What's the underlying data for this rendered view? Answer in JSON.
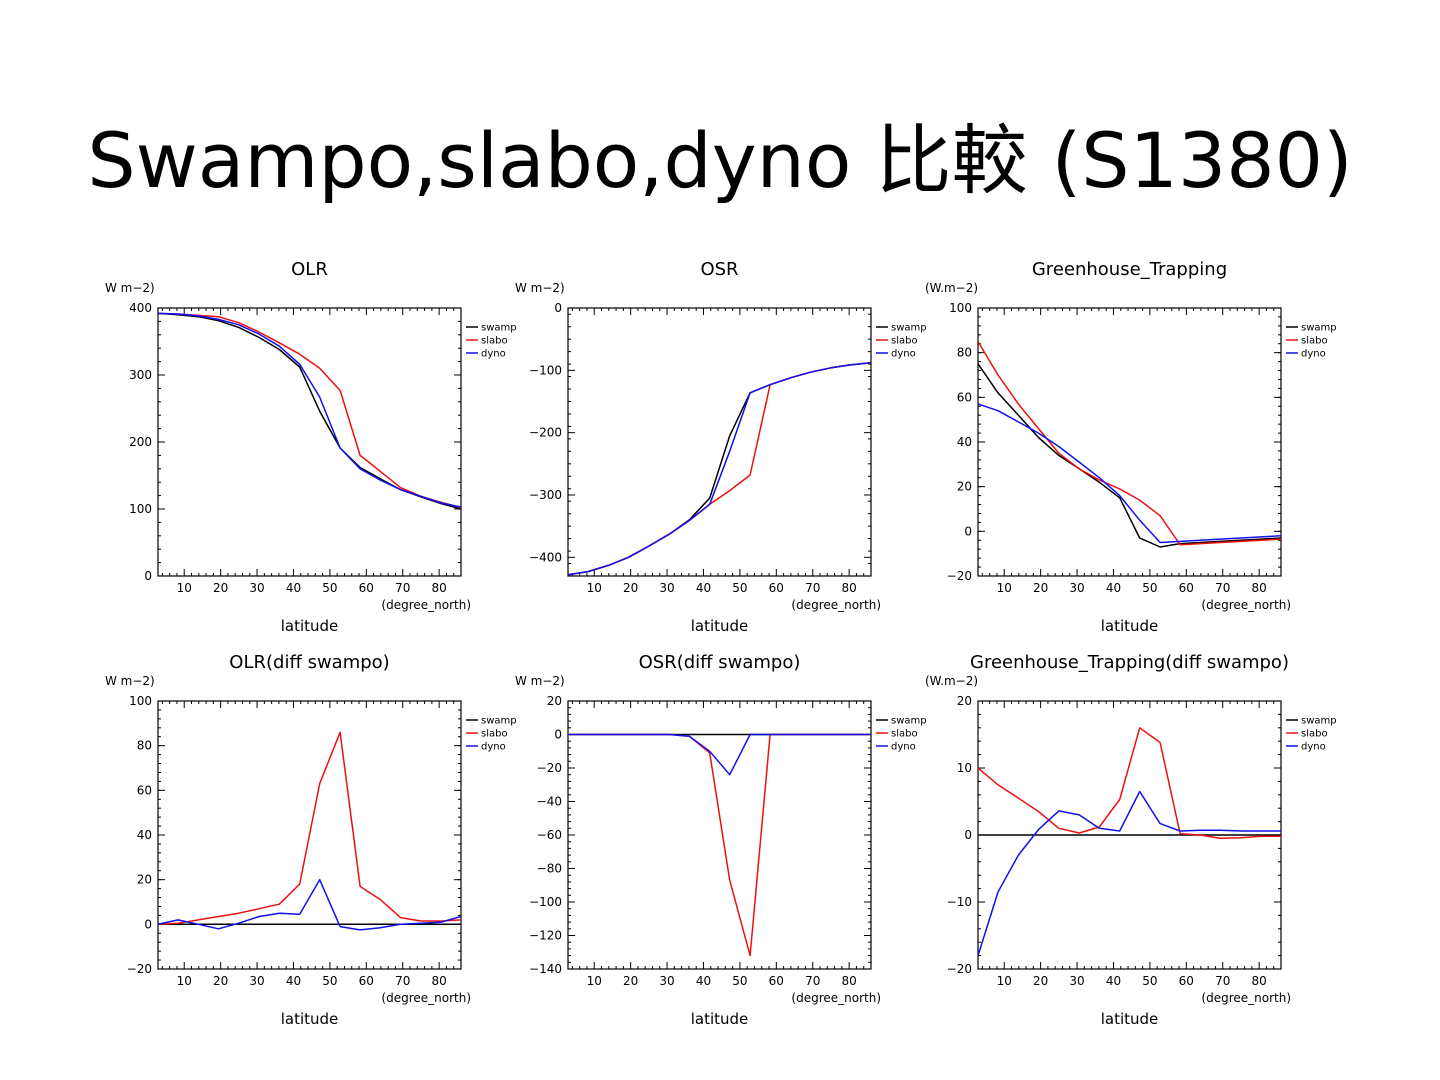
{
  "slide": {
    "title": "Swampo,slabo,dyno 比較 (S1380)"
  },
  "colors": {
    "swamp": "#000000",
    "slabo": "#ee1111",
    "dyno": "#1111ee"
  },
  "chart_data": [
    {
      "type": "line",
      "title": "OLR",
      "ylabel": "W m−2)",
      "xlabel": "latitude",
      "xunit": "(degree_north)",
      "xlim": [
        2.8,
        86
      ],
      "ylim": [
        0,
        400
      ],
      "xticks": [
        10,
        20,
        30,
        40,
        50,
        60,
        70,
        80
      ],
      "yticks": [
        0,
        100,
        200,
        300,
        400
      ],
      "legend": "top-right",
      "series": [
        {
          "name": "swamp",
          "color": "#000000",
          "x": [
            2.8,
            8.3,
            13.9,
            19.4,
            25,
            30.6,
            36.1,
            41.7,
            47.2,
            52.8,
            58.3,
            63.9,
            69.4,
            75,
            80.6,
            86
          ],
          "y": [
            392,
            390,
            387,
            381,
            371,
            356,
            338,
            312,
            246,
            191,
            162,
            145,
            129,
            118,
            108,
            100
          ]
        },
        {
          "name": "slabo",
          "color": "#ee1111",
          "x": [
            2.8,
            8.3,
            13.9,
            19.4,
            25,
            30.6,
            36.1,
            41.7,
            47.2,
            52.8,
            58.3,
            63.9,
            69.4,
            75,
            80.6,
            86
          ],
          "y": [
            392,
            391,
            389,
            387,
            378,
            364,
            348,
            331,
            310,
            277,
            180,
            156,
            132,
            119,
            110,
            102
          ]
        },
        {
          "name": "dyno",
          "color": "#1111ee",
          "x": [
            2.8,
            8.3,
            13.9,
            19.4,
            25,
            30.6,
            36.1,
            41.7,
            47.2,
            52.8,
            58.3,
            63.9,
            69.4,
            75,
            80.6,
            86
          ],
          "y": [
            392,
            391,
            388,
            383,
            375,
            361,
            343,
            316,
            267,
            191,
            160,
            143,
            129,
            119,
            109,
            103
          ]
        }
      ]
    },
    {
      "type": "line",
      "title": "OSR",
      "ylabel": "W m−2)",
      "xlabel": "latitude",
      "xunit": "(degree_north)",
      "xlim": [
        2.8,
        86
      ],
      "ylim": [
        -430,
        0
      ],
      "xticks": [
        10,
        20,
        30,
        40,
        50,
        60,
        70,
        80
      ],
      "yticks": [
        -400,
        -300,
        -200,
        -100,
        0
      ],
      "legend": "top-right",
      "series": [
        {
          "name": "swamp",
          "color": "#000000",
          "x": [
            2.8,
            8.3,
            13.9,
            19.4,
            25,
            30.6,
            36.1,
            41.7,
            47.2,
            52.8,
            58.3,
            63.9,
            69.4,
            75,
            80.6,
            86
          ],
          "y": [
            -428,
            -423,
            -413,
            -400,
            -382,
            -363,
            -340,
            -305,
            -205,
            -136,
            -123,
            -112,
            -103,
            -96,
            -91,
            -88
          ]
        },
        {
          "name": "slabo",
          "color": "#ee1111",
          "x": [
            2.8,
            8.3,
            13.9,
            19.4,
            25,
            30.6,
            36.1,
            41.7,
            47.2,
            52.8,
            58.3,
            63.9,
            69.4,
            75,
            80.6,
            86
          ],
          "y": [
            -428,
            -423,
            -413,
            -400,
            -382,
            -363,
            -341,
            -315,
            -293,
            -268,
            -123,
            -112,
            -103,
            -96,
            -91,
            -88
          ]
        },
        {
          "name": "dyno",
          "color": "#1111ee",
          "x": [
            2.8,
            8.3,
            13.9,
            19.4,
            25,
            30.6,
            36.1,
            41.7,
            47.2,
            52.8,
            58.3,
            63.9,
            69.4,
            75,
            80.6,
            86
          ],
          "y": [
            -428,
            -423,
            -413,
            -400,
            -382,
            -363,
            -341,
            -315,
            -230,
            -136,
            -123,
            -112,
            -103,
            -96,
            -91,
            -88
          ]
        }
      ]
    },
    {
      "type": "line",
      "title": "Greenhouse_Trapping",
      "ylabel": "(W.m−2)",
      "xlabel": "latitude",
      "xunit": "(degree_north)",
      "xlim": [
        2.8,
        86
      ],
      "ylim": [
        -20,
        100
      ],
      "xticks": [
        10,
        20,
        30,
        40,
        50,
        60,
        70,
        80
      ],
      "yticks": [
        -20,
        0,
        20,
        40,
        60,
        80,
        100
      ],
      "legend": "top-right",
      "series": [
        {
          "name": "swamp",
          "color": "#000000",
          "x": [
            2.8,
            8.3,
            13.9,
            19.4,
            25,
            30.6,
            36.1,
            41.7,
            47.2,
            52.8,
            58.3,
            63.9,
            69.4,
            75,
            80.6,
            86
          ],
          "y": [
            75,
            62,
            52,
            42,
            34,
            28,
            22,
            15,
            -3,
            -7,
            -5.5,
            -5,
            -4.5,
            -4,
            -3.5,
            -3
          ]
        },
        {
          "name": "slabo",
          "color": "#ee1111",
          "x": [
            2.8,
            8.3,
            13.9,
            19.4,
            25,
            30.6,
            36.1,
            41.7,
            47.2,
            52.8,
            58.3,
            63.9,
            69.4,
            75,
            80.6,
            86
          ],
          "y": [
            85,
            70,
            57,
            46,
            35,
            28,
            23,
            19,
            14,
            7,
            -6,
            -5.5,
            -5,
            -4.5,
            -4,
            -3.5
          ]
        },
        {
          "name": "dyno",
          "color": "#1111ee",
          "x": [
            2.8,
            8.3,
            13.9,
            19.4,
            25,
            30.6,
            36.1,
            41.7,
            47.2,
            52.8,
            58.3,
            63.9,
            69.4,
            75,
            80.6,
            86
          ],
          "y": [
            57,
            54,
            49,
            44,
            38,
            31,
            24,
            16,
            5,
            -5,
            -4.5,
            -4,
            -3.5,
            -3,
            -2.5,
            -2
          ]
        }
      ]
    },
    {
      "type": "line",
      "title": "OLR(diff swampo)",
      "ylabel": "W m−2)",
      "xlabel": "latitude",
      "xunit": "(degree_north)",
      "xlim": [
        2.8,
        86
      ],
      "ylim": [
        -20,
        100
      ],
      "xticks": [
        10,
        20,
        30,
        40,
        50,
        60,
        70,
        80
      ],
      "yticks": [
        -20,
        0,
        20,
        40,
        60,
        80,
        100
      ],
      "legend": "top-right",
      "series": [
        {
          "name": "swamp",
          "color": "#000000",
          "x": [
            2.8,
            86
          ],
          "y": [
            0,
            0
          ]
        },
        {
          "name": "slabo",
          "color": "#ee1111",
          "x": [
            2.8,
            8.3,
            13.9,
            19.4,
            25,
            30.6,
            36.1,
            41.7,
            47.2,
            52.8,
            58.3,
            63.9,
            69.4,
            75,
            80.6,
            86
          ],
          "y": [
            0,
            0.5,
            2,
            3.5,
            5,
            7,
            9,
            18,
            63,
            86,
            17,
            11,
            3,
            1.5,
            1.5,
            2
          ]
        },
        {
          "name": "dyno",
          "color": "#1111ee",
          "x": [
            2.8,
            8.3,
            13.9,
            19.4,
            25,
            30.6,
            36.1,
            41.7,
            47.2,
            52.8,
            58.3,
            63.9,
            69.4,
            75,
            80.6,
            86
          ],
          "y": [
            0,
            2,
            0,
            -2,
            0.5,
            3.5,
            5,
            4.5,
            20,
            -1,
            -2.5,
            -1.5,
            0,
            0.5,
            1,
            3.5
          ]
        }
      ]
    },
    {
      "type": "line",
      "title": "OSR(diff swampo)",
      "ylabel": "W m−2)",
      "xlabel": "latitude",
      "xunit": "(degree_north)",
      "xlim": [
        2.8,
        86
      ],
      "ylim": [
        -140,
        20
      ],
      "xticks": [
        10,
        20,
        30,
        40,
        50,
        60,
        70,
        80
      ],
      "yticks": [
        -140,
        -120,
        -100,
        -80,
        -60,
        -40,
        -20,
        0,
        20
      ],
      "legend": "top-right",
      "series": [
        {
          "name": "swamp",
          "color": "#000000",
          "x": [
            2.8,
            86
          ],
          "y": [
            0,
            0
          ]
        },
        {
          "name": "slabo",
          "color": "#ee1111",
          "x": [
            2.8,
            8.3,
            13.9,
            19.4,
            25,
            30.6,
            36.1,
            41.7,
            47.2,
            52.8,
            58.3,
            63.9,
            69.4,
            75,
            80.6,
            86
          ],
          "y": [
            0,
            0,
            0,
            0,
            0,
            0,
            -1,
            -11,
            -87,
            -132,
            0,
            0,
            0,
            0,
            0,
            0
          ]
        },
        {
          "name": "dyno",
          "color": "#1111ee",
          "x": [
            2.8,
            8.3,
            13.9,
            19.4,
            25,
            30.6,
            36.1,
            41.7,
            47.2,
            52.8,
            58.3,
            63.9,
            69.4,
            75,
            80.6,
            86
          ],
          "y": [
            0,
            0,
            0,
            0,
            0,
            0,
            -1,
            -10,
            -24,
            0,
            0,
            0,
            0,
            0,
            0,
            0
          ]
        }
      ]
    },
    {
      "type": "line",
      "title": "Greenhouse_Trapping(diff swampo)",
      "ylabel": "(W.m−2)",
      "xlabel": "latitude",
      "xunit": "(degree_north)",
      "xlim": [
        2.8,
        86
      ],
      "ylim": [
        -20,
        20
      ],
      "xticks": [
        10,
        20,
        30,
        40,
        50,
        60,
        70,
        80
      ],
      "yticks": [
        -20,
        -10,
        0,
        10,
        20
      ],
      "legend": "top-right",
      "series": [
        {
          "name": "swamp",
          "color": "#000000",
          "x": [
            2.8,
            86
          ],
          "y": [
            0,
            0
          ]
        },
        {
          "name": "slabo",
          "color": "#ee1111",
          "x": [
            2.8,
            8.3,
            13.9,
            19.4,
            25,
            30.6,
            36.1,
            41.7,
            47.2,
            52.8,
            58.3,
            63.9,
            69.4,
            75,
            80.6,
            86
          ],
          "y": [
            10,
            7.5,
            5.5,
            3.5,
            1,
            0.3,
            1.2,
            5.3,
            16,
            13.8,
            0.2,
            0,
            -0.5,
            -0.4,
            -0.2,
            -0.2
          ]
        },
        {
          "name": "dyno",
          "color": "#1111ee",
          "x": [
            2.8,
            8.3,
            13.9,
            19.4,
            25,
            30.6,
            36.1,
            41.7,
            47.2,
            52.8,
            58.3,
            63.9,
            69.4,
            75,
            80.6,
            86
          ],
          "y": [
            -18,
            -8.5,
            -3,
            0.8,
            3.6,
            3,
            1,
            0.6,
            6.5,
            1.7,
            0.6,
            0.7,
            0.7,
            0.6,
            0.6,
            0.6
          ]
        }
      ]
    }
  ]
}
